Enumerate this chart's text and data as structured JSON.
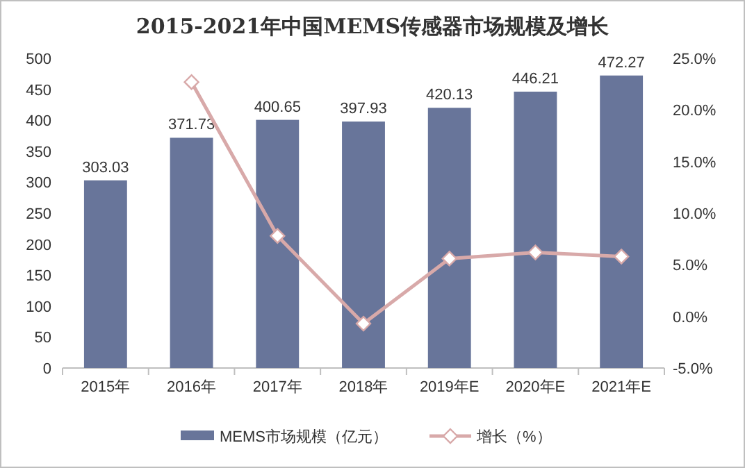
{
  "chart_data": {
    "type": "bar",
    "title": "2015-2021年中国MEMS传感器市场规模及增长",
    "categories": [
      "2015年",
      "2016年",
      "2017年",
      "2018年",
      "2019年E",
      "2020年E",
      "2021年E"
    ],
    "series": [
      {
        "name": "MEMS市场规模（亿元）",
        "color": "#68759a",
        "values": [
          303.03,
          371.73,
          400.65,
          397.93,
          420.13,
          446.21,
          472.27
        ],
        "value_labels": [
          "303.03",
          "371.73",
          "400.65",
          "397.93",
          "420.13",
          "446.21",
          "472.27"
        ]
      },
      {
        "name": "增长（%）",
        "type": "line",
        "axis": "y2",
        "color": "#d8a9a9",
        "marker": "diamond",
        "values": [
          null,
          22.7,
          7.8,
          -0.7,
          5.6,
          6.2,
          5.8
        ]
      }
    ],
    "ylim": [
      0,
      500
    ],
    "yticks": [
      0,
      50,
      100,
      150,
      200,
      250,
      300,
      350,
      400,
      450,
      500
    ],
    "y2lim": [
      -5,
      25
    ],
    "y2ticks": [
      {
        "value": -5,
        "label": "-5.0%"
      },
      {
        "value": 0,
        "label": "0.0%"
      },
      {
        "value": 5,
        "label": "5.0%"
      },
      {
        "value": 10,
        "label": "10.0%"
      },
      {
        "value": 15,
        "label": "15.0%"
      },
      {
        "value": 20,
        "label": "20.0%"
      },
      {
        "value": 25,
        "label": "25.0%"
      }
    ],
    "legend": "bottom",
    "grid": false
  }
}
